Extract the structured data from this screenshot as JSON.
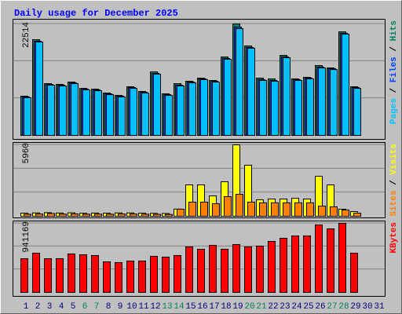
{
  "chart_data": {
    "type": "bar",
    "title": "Daily usage for December 2025",
    "categories": [
      "1",
      "2",
      "3",
      "4",
      "5",
      "6",
      "7",
      "8",
      "9",
      "10",
      "11",
      "12",
      "13",
      "14",
      "15",
      "16",
      "17",
      "18",
      "19",
      "20",
      "21",
      "22",
      "23",
      "24",
      "25",
      "26",
      "27",
      "28",
      "29",
      "30",
      "31"
    ],
    "category_colors": [
      "#000080",
      "#000080",
      "#000080",
      "#000080",
      "#000080",
      "#00805c",
      "#00805c",
      "#000080",
      "#000080",
      "#000080",
      "#000080",
      "#000080",
      "#00805c",
      "#00805c",
      "#000080",
      "#000080",
      "#000080",
      "#000080",
      "#000080",
      "#00805c",
      "#00805c",
      "#000080",
      "#000080",
      "#000080",
      "#000080",
      "#000080",
      "#00805c",
      "#00805c",
      "#000080",
      "#000080",
      "#000080"
    ],
    "legend_separator": " / ",
    "grid_divisions": 3,
    "panels": [
      {
        "ylim": [
          0,
          22514
        ],
        "yticks": [
          22514
        ],
        "series": [
          {
            "name": "Hits",
            "color": "#00805c",
            "values": [
              7930,
              19340,
              10460,
              10310,
              10780,
              9510,
              9350,
              8560,
              8090,
              9830,
              8880,
              12840,
              8400,
              10460,
              10940,
              11570,
              11100,
              15850,
              22514,
              18070,
              11570,
              11420,
              16170,
              11420,
              11730,
              14110,
              13630,
              20930,
              9830,
              null,
              null
            ]
          },
          {
            "name": "Files",
            "color": "#0040ff",
            "values": [
              7780,
              19020,
              10300,
              10150,
              10620,
              9350,
              9190,
              8400,
              7930,
              9670,
              8720,
              12530,
              8240,
              10150,
              10780,
              11420,
              10940,
              15540,
              21880,
              17760,
              11260,
              11100,
              15860,
              11260,
              11570,
              13800,
              13470,
              20620,
              9670,
              null,
              null
            ]
          },
          {
            "name": "Pages",
            "color": "#00c0ff",
            "values": [
              7620,
              18870,
              10150,
              9990,
              10460,
              9190,
              9030,
              8240,
              7780,
              9510,
              8560,
              12370,
              8090,
              9990,
              10620,
              11260,
              10780,
              15380,
              21570,
              17600,
              11100,
              10940,
              15700,
              11100,
              11420,
              13630,
              13310,
              20460,
              9510,
              null,
              null
            ]
          }
        ]
      },
      {
        "ylim": [
          0,
          5960
        ],
        "yticks": [
          5960
        ],
        "series": [
          {
            "name": "Visits",
            "color": "#ffff00",
            "values": [
              260,
              280,
              300,
              270,
              290,
              250,
              270,
              260,
              280,
              280,
              260,
              240,
              230,
              600,
              2620,
              2620,
              1700,
              2880,
              5960,
              4260,
              1380,
              1440,
              1440,
              1500,
              1440,
              3340,
              2620,
              590,
              390,
              null,
              null
            ]
          },
          {
            "name": "Sites",
            "color": "#ff8000",
            "values": [
              170,
              190,
              230,
              180,
              200,
              170,
              180,
              170,
              190,
              190,
              170,
              160,
              150,
              590,
              1180,
              1180,
              1050,
              1640,
              1830,
              1180,
              1120,
              1120,
              1120,
              1120,
              1120,
              850,
              790,
              520,
              260,
              null,
              null
            ]
          }
        ]
      },
      {
        "ylim": [
          0,
          941169
        ],
        "yticks": [
          941169
        ],
        "series": [
          {
            "name": "KBytes",
            "color": "#ff0000",
            "values": [
              459900,
              534800,
              459900,
              459900,
              524100,
              513400,
              502700,
              417100,
              406400,
              427800,
              427800,
              492000,
              481300,
              502700,
              620300,
              588200,
              641700,
              588200,
              652400,
              620300,
              631000,
              695200,
              738000,
              770000,
              770000,
              919800,
              866300,
              941169,
              534800,
              null,
              null
            ]
          }
        ]
      }
    ]
  }
}
